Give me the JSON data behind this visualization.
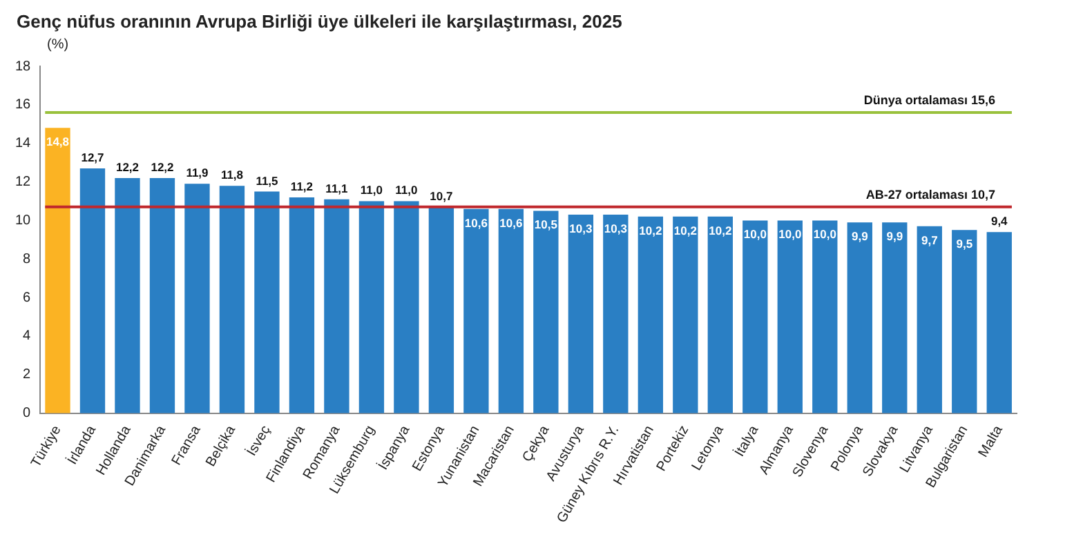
{
  "chart_data": {
    "type": "bar",
    "title": "Genç nüfus oranının Avrupa Birliği üye ülkeleri ile karşılaştırması, 2025",
    "ylabel": "(%)",
    "categories": [
      "Türkiye",
      "İrlanda",
      "Hollanda",
      "Danimarka",
      "Fransa",
      "Belçika",
      "İsveç",
      "Finlandiya",
      "Romanya",
      "Lüksemburg",
      "İspanya",
      "Estonya",
      "Yunanistan",
      "Macaristan",
      "Çekya",
      "Avusturya",
      "Güney Kıbrıs R.Y.",
      "Hırvatistan",
      "Portekiz",
      "Letonya",
      "İtalya",
      "Almanya",
      "Slovenya",
      "Polonya",
      "Slovakya",
      "Litvanya",
      "Bulgaristan",
      "Malta"
    ],
    "values": [
      14.8,
      12.7,
      12.2,
      12.2,
      11.9,
      11.8,
      11.5,
      11.2,
      11.1,
      11.0,
      11.0,
      10.7,
      10.6,
      10.6,
      10.5,
      10.3,
      10.3,
      10.2,
      10.2,
      10.2,
      10.0,
      10.0,
      10.0,
      9.9,
      9.9,
      9.7,
      9.5,
      9.4
    ],
    "value_labels": [
      "14,8",
      "12,7",
      "12,2",
      "12,2",
      "11,9",
      "11,8",
      "11,5",
      "11,2",
      "11,1",
      "11,0",
      "11,0",
      "10,7",
      "10,6",
      "10,6",
      "10,5",
      "10,3",
      "10,3",
      "10,2",
      "10,2",
      "10,2",
      "10,0",
      "10,0",
      "10,0",
      "9,9",
      "9,9",
      "9,7",
      "9,5",
      "9,4"
    ],
    "colors": [
      "#fbb323",
      "#2a7fc4",
      "#2a7fc4",
      "#2a7fc4",
      "#2a7fc4",
      "#2a7fc4",
      "#2a7fc4",
      "#2a7fc4",
      "#2a7fc4",
      "#2a7fc4",
      "#2a7fc4",
      "#2a7fc4",
      "#2a7fc4",
      "#2a7fc4",
      "#2a7fc4",
      "#2a7fc4",
      "#2a7fc4",
      "#2a7fc4",
      "#2a7fc4",
      "#2a7fc4",
      "#2a7fc4",
      "#2a7fc4",
      "#2a7fc4",
      "#2a7fc4",
      "#2a7fc4",
      "#2a7fc4",
      "#2a7fc4",
      "#2a7fc4"
    ],
    "ylim": [
      0,
      18
    ],
    "yticks": [
      0,
      2,
      4,
      6,
      8,
      10,
      12,
      14,
      16,
      18
    ],
    "grid": false,
    "legend": false,
    "ref_lines": [
      {
        "axis": "y",
        "value": 15.6,
        "label": "Dünya ortalaması 15,6",
        "color": "#99c13c"
      },
      {
        "axis": "y",
        "value": 10.7,
        "label": "AB-27 ortalaması 10,7",
        "color": "#c0282d"
      }
    ]
  }
}
